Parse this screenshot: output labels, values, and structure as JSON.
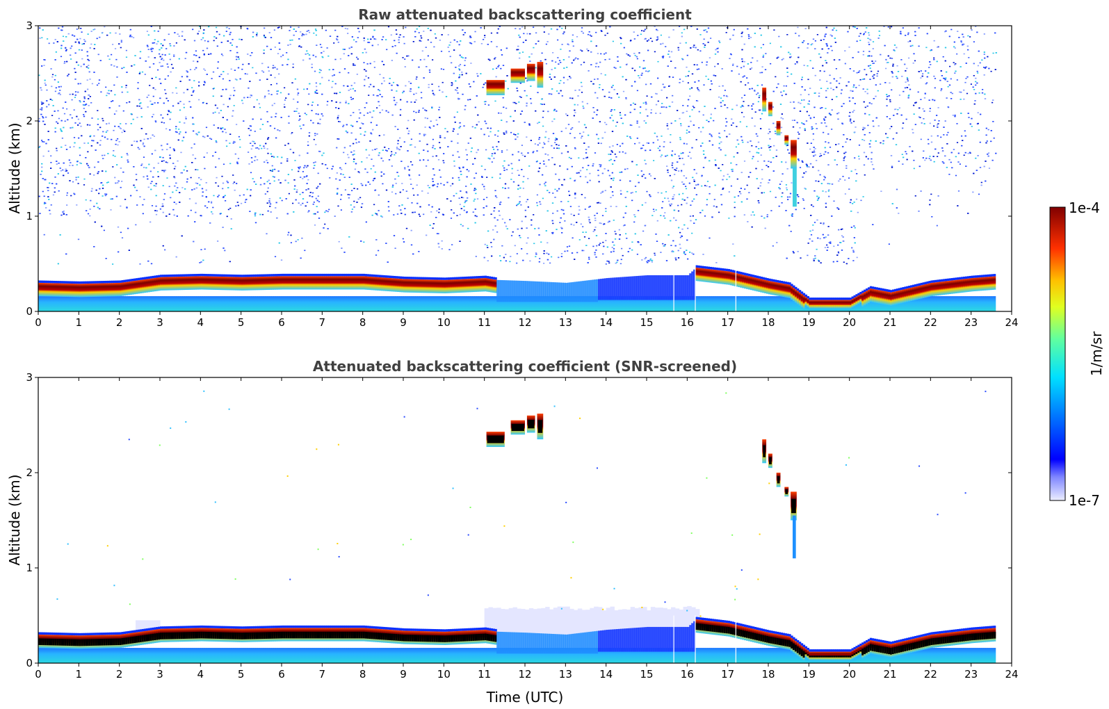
{
  "colors": {
    "noise": "#2a4cff",
    "noise_light": "#8fa4ff",
    "noise_cyan": "#29c8e8",
    "layer_red": "#c00000",
    "layer_dark": "#7a0000",
    "surface": "#3ad0e6",
    "blue_band": "#1a3cff",
    "screened_core": "#000000",
    "pale": "#e4e6ff"
  },
  "colorbar": {
    "label": "1/m/sr",
    "max_label": "1e-4",
    "min_label": "1e-7"
  },
  "chart_data": [
    {
      "type": "heatmap",
      "title": "Raw attenuated backscattering coefficient",
      "xlabel": "",
      "ylabel": "Altitude (km)",
      "xlim": [
        0,
        24
      ],
      "ylim": [
        0,
        3
      ],
      "xticks": [
        "0",
        "1",
        "2",
        "3",
        "4",
        "5",
        "6",
        "7",
        "8",
        "9",
        "10",
        "11",
        "12",
        "13",
        "14",
        "15",
        "16",
        "17",
        "18",
        "19",
        "20",
        "21",
        "22",
        "23",
        "24"
      ],
      "yticks": [
        "0",
        "1",
        "2",
        "3"
      ],
      "colorscale": "jet",
      "data_end_hour": 23.6,
      "boundary_layer_top_km": [
        [
          0,
          0.3
        ],
        [
          1,
          0.29
        ],
        [
          2,
          0.3
        ],
        [
          3,
          0.36
        ],
        [
          4,
          0.37
        ],
        [
          5,
          0.36
        ],
        [
          6,
          0.37
        ],
        [
          7,
          0.37
        ],
        [
          8,
          0.37
        ],
        [
          9,
          0.34
        ],
        [
          10,
          0.33
        ],
        [
          11,
          0.35
        ],
        [
          11.3,
          0.33
        ],
        [
          12,
          0.32
        ],
        [
          13,
          0.3
        ],
        [
          14,
          0.35
        ],
        [
          15,
          0.38
        ],
        [
          16,
          0.38
        ],
        [
          16.2,
          0.46
        ],
        [
          17,
          0.42
        ],
        [
          18,
          0.32
        ],
        [
          18.5,
          0.28
        ],
        [
          19,
          0.12
        ],
        [
          20,
          0.12
        ],
        [
          20.5,
          0.24
        ],
        [
          21,
          0.2
        ],
        [
          22,
          0.3
        ],
        [
          23,
          0.35
        ],
        [
          23.6,
          0.37
        ]
      ],
      "clouds_km": [
        {
          "t0": 11.05,
          "t1": 11.5,
          "alt0": 2.27,
          "alt1": 2.43
        },
        {
          "t0": 11.65,
          "t1": 12.0,
          "alt0": 2.4,
          "alt1": 2.55
        },
        {
          "t0": 12.05,
          "t1": 12.25,
          "alt0": 2.42,
          "alt1": 2.6
        },
        {
          "t0": 12.3,
          "t1": 12.45,
          "alt0": 2.35,
          "alt1": 2.62
        },
        {
          "t0": 17.85,
          "t1": 17.95,
          "alt0": 2.1,
          "alt1": 2.35
        },
        {
          "t0": 18.0,
          "t1": 18.1,
          "alt0": 2.05,
          "alt1": 2.2
        },
        {
          "t0": 18.2,
          "t1": 18.3,
          "alt0": 1.85,
          "alt1": 2.0
        },
        {
          "t0": 18.4,
          "t1": 18.5,
          "alt0": 1.75,
          "alt1": 1.85
        },
        {
          "t0": 18.55,
          "t1": 18.7,
          "alt0": 1.5,
          "alt1": 1.8
        }
      ]
    },
    {
      "type": "heatmap",
      "title": "Attenuated backscattering coefficient (SNR-screened)",
      "xlabel": "Time (UTC)",
      "ylabel": "Altitude (km)",
      "xlim": [
        0,
        24
      ],
      "ylim": [
        0,
        3
      ],
      "xticks": [
        "0",
        "1",
        "2",
        "3",
        "4",
        "5",
        "6",
        "7",
        "8",
        "9",
        "10",
        "11",
        "12",
        "13",
        "14",
        "15",
        "16",
        "17",
        "18",
        "19",
        "20",
        "21",
        "22",
        "23",
        "24"
      ],
      "yticks": [
        "0",
        "1",
        "2",
        "3"
      ],
      "colorscale": "jet",
      "data_end_hour": 23.6
    }
  ]
}
